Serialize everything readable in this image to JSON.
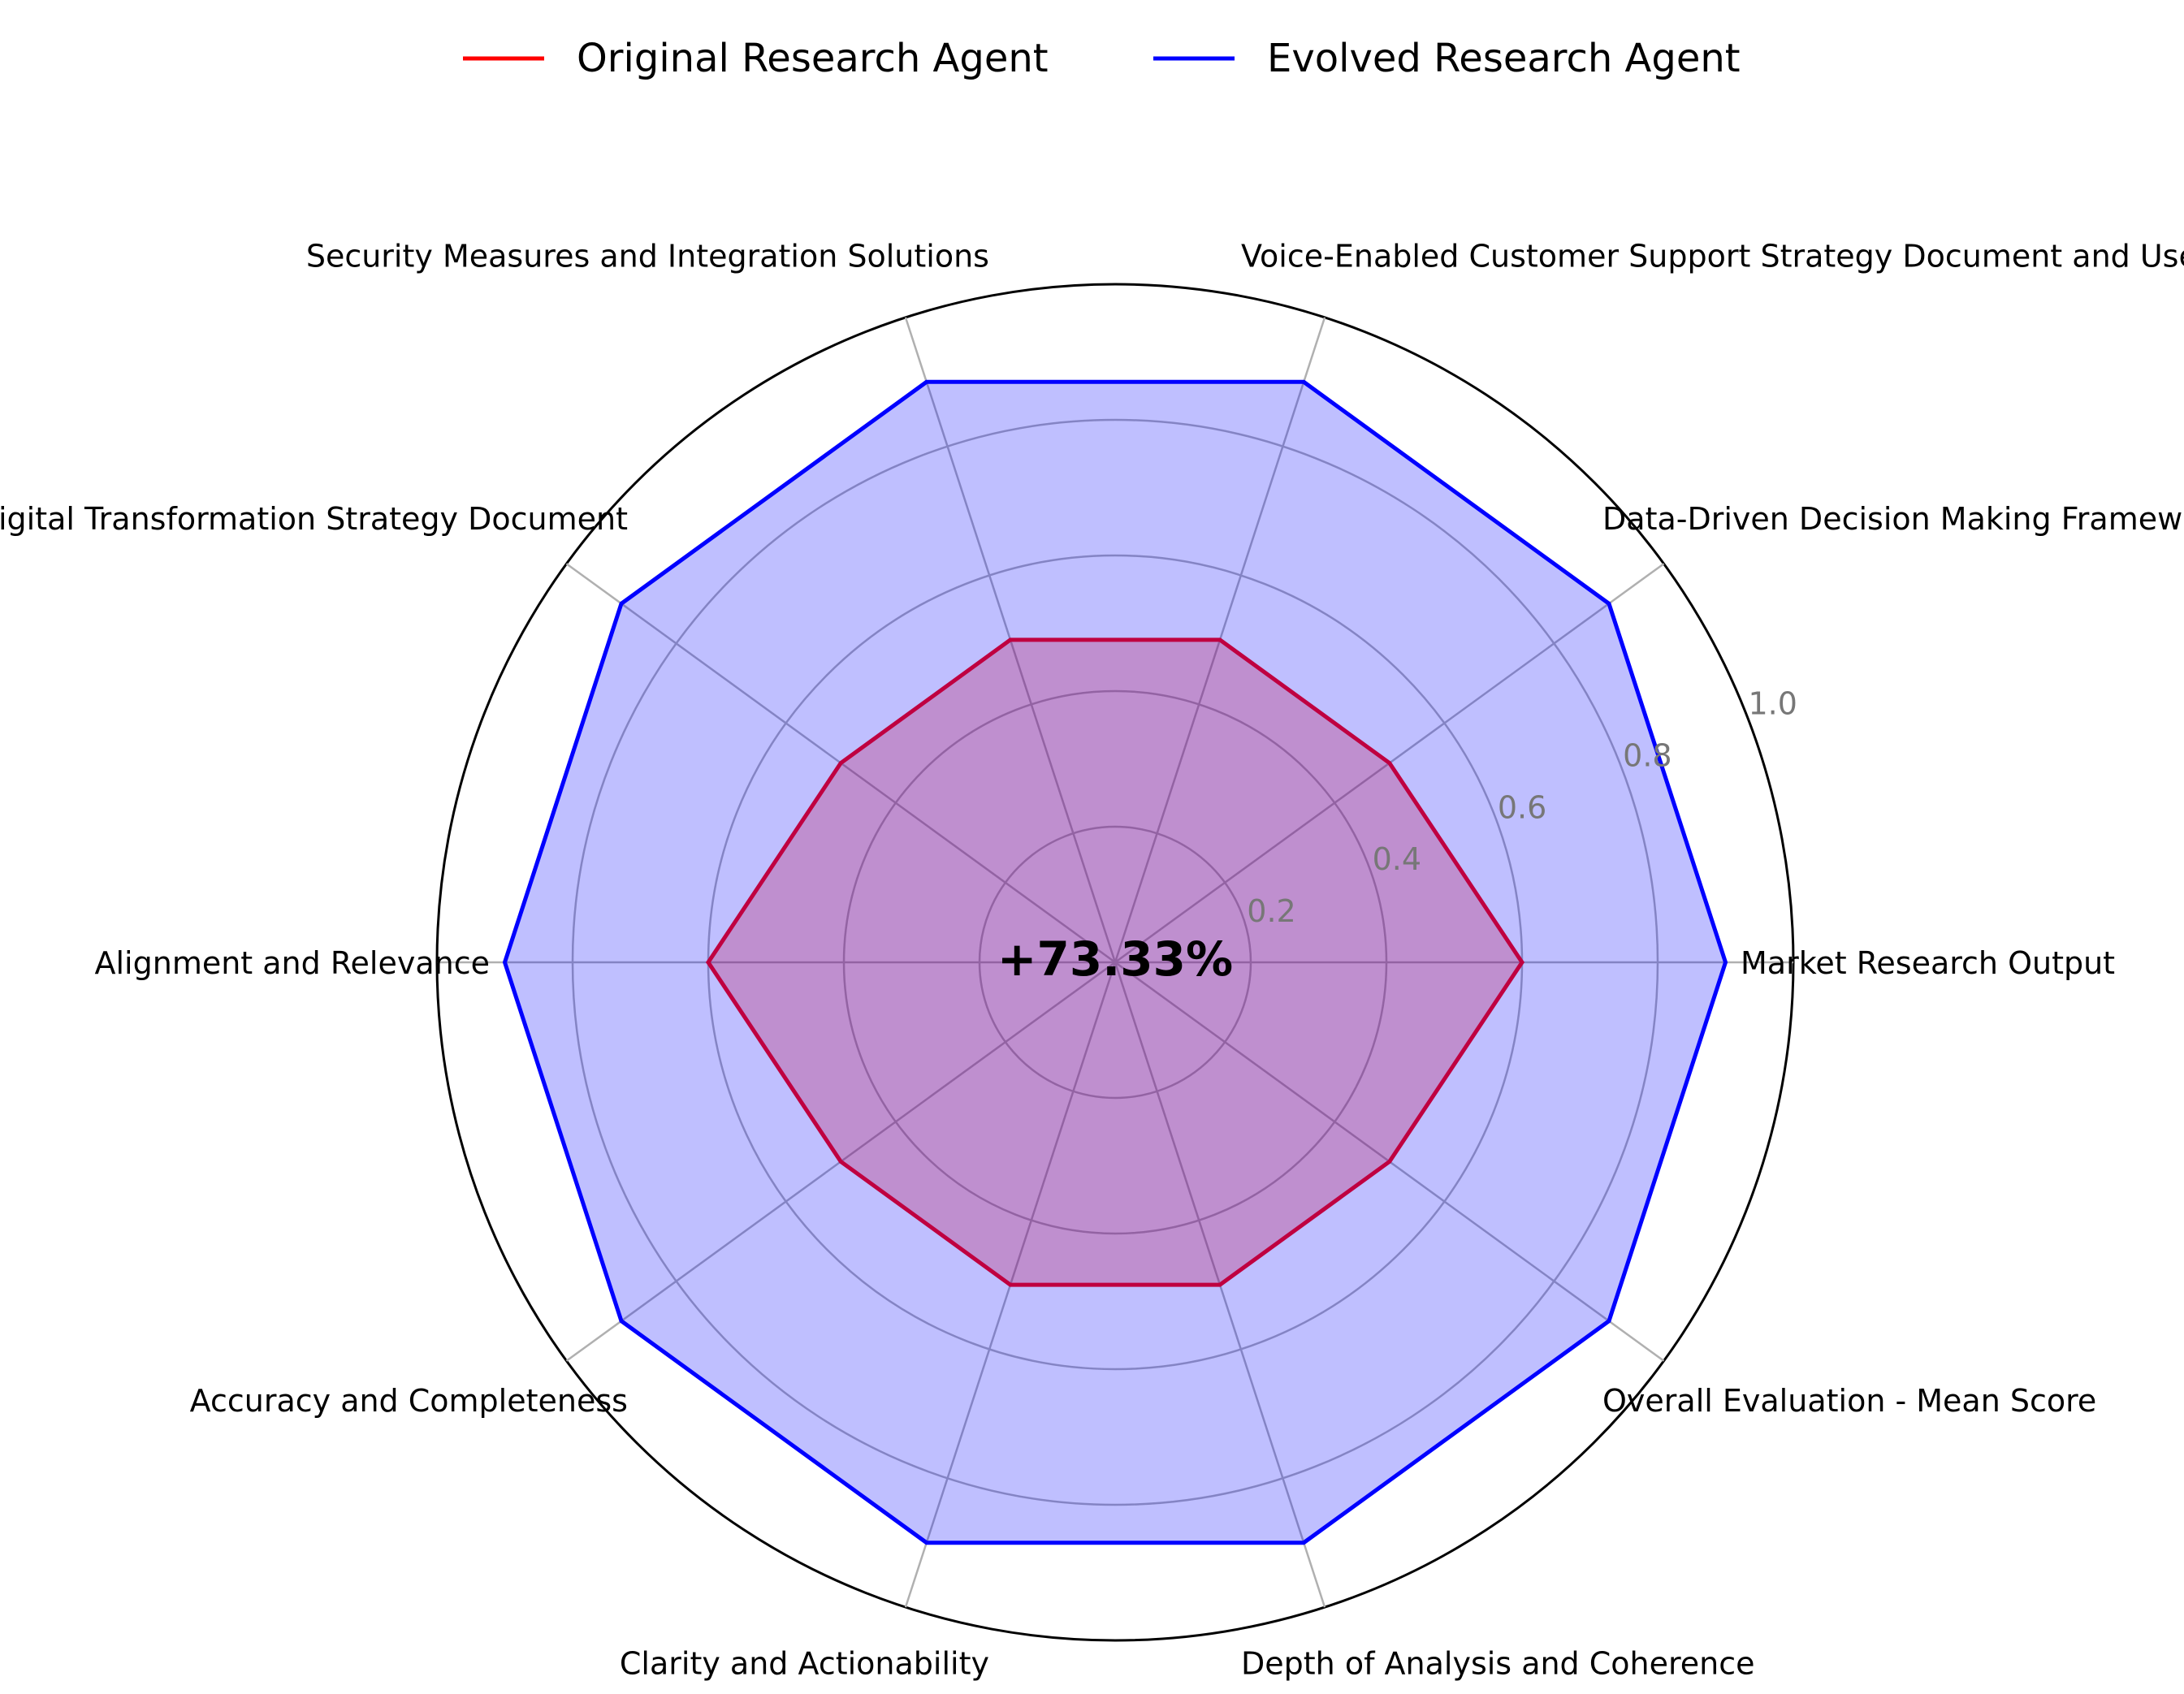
{
  "chart_data": {
    "type": "radar",
    "categories": [
      "Market Research Output",
      "Data-Driven Decision Making Framework and Strategy",
      "Voice-Enabled Customer Support Strategy Document and User Experience Principles",
      "Security Measures and Integration Solutions",
      "Comprehensive Digital Transformation Strategy Document",
      "Alignment and Relevance",
      "Accuracy and Completeness",
      "Clarity and Actionability",
      "Depth of Analysis and Coherence",
      "Overall Evaluation - Mean Score"
    ],
    "series": [
      {
        "name": "Original Research Agent",
        "color": "#ff0000",
        "fill": "#ff0000",
        "values": [
          0.6,
          0.5,
          0.5,
          0.5,
          0.5,
          0.6,
          0.5,
          0.5,
          0.5,
          0.5
        ]
      },
      {
        "name": "Evolved Research Agent",
        "color": "#0000ff",
        "fill": "#0000ff",
        "values": [
          0.9,
          0.9,
          0.9,
          0.9,
          0.9,
          0.9,
          0.9,
          0.9,
          0.9,
          0.9
        ]
      }
    ],
    "rlim": [
      0,
      1.0
    ],
    "radial_ticks": [
      "0.2",
      "0.4",
      "0.6",
      "0.8",
      "1.0"
    ],
    "center_annotation": "+73.33%",
    "grid": true,
    "legend_position": "top-center"
  }
}
